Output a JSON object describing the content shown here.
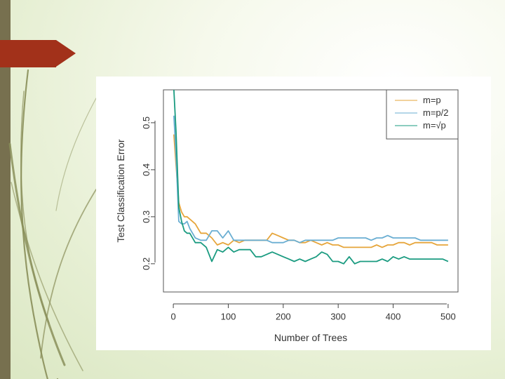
{
  "slide": {
    "colors": {
      "side_bar": "#77704f",
      "title_tab": "#a2311a",
      "decor_lines": "#8a8f5a"
    }
  },
  "chart_data": {
    "type": "line",
    "title": "",
    "xlabel": "Number of Trees",
    "ylabel": "Test Classification Error",
    "xlim": [
      -18,
      518
    ],
    "ylim": [
      0.14,
      0.57
    ],
    "x_ticks": [
      0,
      100,
      200,
      300,
      400,
      500
    ],
    "y_ticks": [
      0.2,
      0.3,
      0.4,
      0.5
    ],
    "y_tick_labels": [
      "0.2",
      "0.3",
      "0.4",
      "0.5"
    ],
    "grid": false,
    "legend_position": "top-right",
    "series": [
      {
        "name": "m=p",
        "color": "#e6a53a",
        "x": [
          1,
          5,
          10,
          15,
          20,
          25,
          30,
          40,
          50,
          60,
          70,
          80,
          90,
          100,
          110,
          120,
          130,
          140,
          150,
          160,
          170,
          180,
          190,
          200,
          210,
          220,
          230,
          240,
          250,
          260,
          270,
          280,
          290,
          300,
          310,
          320,
          330,
          340,
          350,
          360,
          370,
          380,
          390,
          400,
          410,
          420,
          430,
          440,
          450,
          460,
          470,
          480,
          490,
          500
        ],
        "y": [
          0.475,
          0.41,
          0.33,
          0.31,
          0.3,
          0.3,
          0.295,
          0.285,
          0.265,
          0.265,
          0.255,
          0.24,
          0.245,
          0.24,
          0.25,
          0.245,
          0.25,
          0.25,
          0.25,
          0.25,
          0.25,
          0.265,
          0.26,
          0.255,
          0.25,
          0.25,
          0.245,
          0.245,
          0.25,
          0.245,
          0.24,
          0.245,
          0.24,
          0.24,
          0.235,
          0.235,
          0.235,
          0.235,
          0.235,
          0.235,
          0.24,
          0.235,
          0.24,
          0.24,
          0.245,
          0.245,
          0.24,
          0.245,
          0.245,
          0.245,
          0.245,
          0.24,
          0.24,
          0.24
        ]
      },
      {
        "name": "m=p/2",
        "color": "#6aaed2",
        "x": [
          1,
          5,
          10,
          15,
          20,
          25,
          30,
          40,
          50,
          60,
          70,
          80,
          90,
          100,
          110,
          120,
          130,
          140,
          150,
          160,
          170,
          180,
          190,
          200,
          210,
          220,
          230,
          240,
          250,
          260,
          270,
          280,
          290,
          300,
          310,
          320,
          330,
          340,
          350,
          360,
          370,
          380,
          390,
          400,
          410,
          420,
          430,
          440,
          450,
          460,
          470,
          480,
          490,
          500
        ],
        "y": [
          0.515,
          0.43,
          0.29,
          0.285,
          0.285,
          0.29,
          0.275,
          0.255,
          0.25,
          0.25,
          0.27,
          0.27,
          0.255,
          0.27,
          0.25,
          0.25,
          0.25,
          0.25,
          0.25,
          0.25,
          0.25,
          0.245,
          0.245,
          0.245,
          0.25,
          0.25,
          0.245,
          0.25,
          0.25,
          0.25,
          0.25,
          0.25,
          0.25,
          0.255,
          0.255,
          0.255,
          0.255,
          0.255,
          0.255,
          0.25,
          0.255,
          0.255,
          0.26,
          0.255,
          0.255,
          0.255,
          0.255,
          0.255,
          0.25,
          0.25,
          0.25,
          0.25,
          0.25,
          0.25
        ]
      },
      {
        "name": "m=√p",
        "color": "#1a9b80",
        "x": [
          1,
          5,
          10,
          15,
          20,
          25,
          30,
          40,
          50,
          60,
          70,
          80,
          90,
          100,
          110,
          120,
          130,
          140,
          150,
          160,
          170,
          180,
          190,
          200,
          210,
          220,
          230,
          240,
          250,
          260,
          270,
          280,
          290,
          300,
          310,
          320,
          330,
          340,
          350,
          360,
          370,
          380,
          390,
          400,
          410,
          420,
          430,
          440,
          450,
          460,
          470,
          480,
          490,
          500
        ],
        "y": [
          0.57,
          0.48,
          0.32,
          0.29,
          0.27,
          0.265,
          0.265,
          0.245,
          0.245,
          0.235,
          0.205,
          0.23,
          0.225,
          0.235,
          0.225,
          0.23,
          0.23,
          0.23,
          0.215,
          0.215,
          0.22,
          0.225,
          0.22,
          0.215,
          0.21,
          0.205,
          0.21,
          0.205,
          0.21,
          0.215,
          0.225,
          0.22,
          0.205,
          0.205,
          0.2,
          0.215,
          0.2,
          0.205,
          0.205,
          0.205,
          0.205,
          0.21,
          0.205,
          0.215,
          0.21,
          0.215,
          0.21,
          0.21,
          0.21,
          0.21,
          0.21,
          0.21,
          0.21,
          0.205
        ]
      }
    ]
  }
}
